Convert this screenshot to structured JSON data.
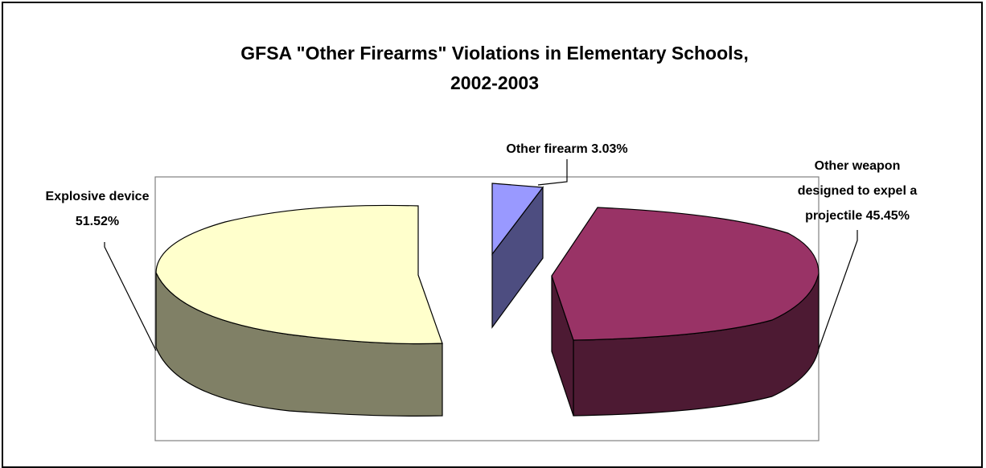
{
  "chart_data": {
    "type": "pie",
    "title": "GFSA \"Other Firearms\" Violations in Elementary Schools,",
    "title_line2": "2002-2003",
    "slices": [
      {
        "label_line1": "Explosive device",
        "label_line2": "51.52%",
        "label_line3": "",
        "name": "Explosive device",
        "value": 51.52,
        "color": "#FFFFCC",
        "side_color": "#808066"
      },
      {
        "label_line1": "Other firearm 3.03%",
        "label_line2": "",
        "label_line3": "",
        "name": "Other firearm",
        "value": 3.03,
        "color": "#9999FF",
        "side_color": "#4D4D80"
      },
      {
        "label_line1": "Other weapon",
        "label_line2": "designed to expel a",
        "label_line3": "projectile 45.45%",
        "name": "Other weapon designed to expel a projectile",
        "value": 45.45,
        "color": "#993366",
        "side_color": "#4D1A33"
      }
    ],
    "style": "3d-exploded",
    "legend": "none"
  }
}
